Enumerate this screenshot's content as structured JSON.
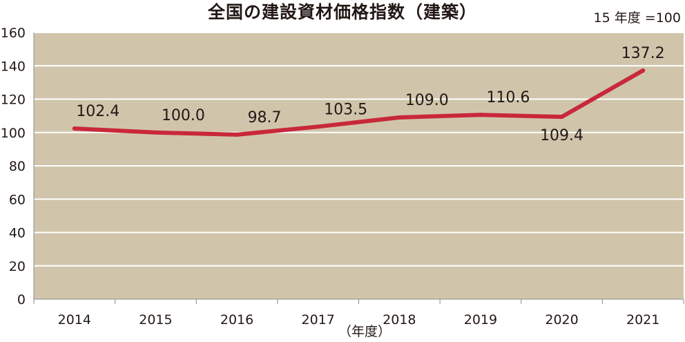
{
  "chart_data": {
    "type": "line",
    "title": "全国の建設資材価格指数（建築）",
    "note": "15 年度 =100",
    "xlabel": "（年度）",
    "ylabel": "",
    "categories": [
      "2014",
      "2015",
      "2016",
      "2017",
      "2018",
      "2019",
      "2020",
      "2021"
    ],
    "series": [
      {
        "values": [
          102.4,
          100.0,
          98.7,
          103.5,
          109.0,
          110.6,
          109.4,
          137.2
        ]
      }
    ],
    "data_labels": [
      "102.4",
      "100.0",
      "98.7",
      "103.5",
      "109.0",
      "110.6",
      "109.4",
      "137.2"
    ],
    "ylim": [
      0,
      160
    ],
    "yticks": [
      0,
      20,
      40,
      60,
      80,
      100,
      120,
      140,
      160
    ],
    "grid": true,
    "colors": {
      "plot_background": "#d0c5ab",
      "line": "#c8283a",
      "grid": "#ffffff",
      "axis": "#8a8a8a"
    }
  }
}
